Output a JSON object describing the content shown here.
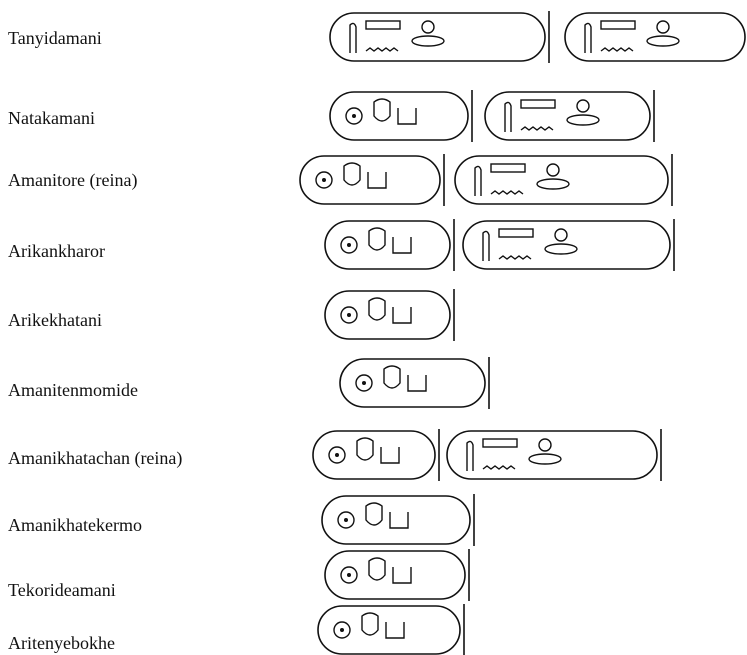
{
  "names": [
    "Tanyidamani",
    "Natakamani",
    "Amanitore (reina)",
    "Arikankharor",
    "Arikekhatani",
    "Amanitenmomide",
    "Amanikhatachan (reina)",
    "Amanikhatekermo",
    "Tekorideamani",
    "Aritenyebokhe"
  ]
}
